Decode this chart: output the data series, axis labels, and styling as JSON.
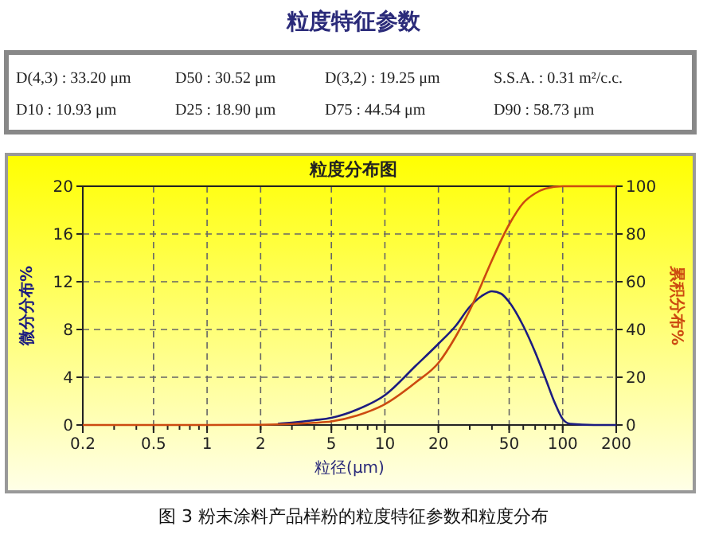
{
  "chart_data": {
    "type": "line",
    "title": "粒度分布图",
    "xlabel": "粒径(μm)",
    "ylabel": "微分分布%",
    "y2label": "累积分布%",
    "annotations": [
      "粒度特征参数",
      "D(4,3) : 33.20 μm",
      "D50 : 30.52 μm",
      "D(3,2) : 19.25 μm",
      "S.S.A. : 0.31 m²/c.c.",
      "D10 : 10.93 μm",
      "D25 : 18.90 μm",
      "D75 : 44.54 μm",
      "D90 : 58.73 μm",
      "图 3  粉末涂料产品样粉的粒度特征参数和粒度分布"
    ],
    "series": [
      {
        "color": "#1c1c80",
        "x": [
          2.5,
          3,
          4,
          5,
          7,
          10,
          15,
          20,
          25,
          30,
          35,
          40,
          45,
          50,
          60,
          70,
          80,
          90,
          100,
          110,
          150,
          200
        ],
        "values": [
          0.1,
          0.2,
          0.4,
          0.6,
          1.3,
          2.5,
          5.0,
          6.8,
          8.3,
          9.9,
          10.8,
          11.2,
          11.0,
          10.3,
          8.3,
          6.1,
          3.9,
          1.9,
          0.5,
          0.1,
          0,
          0
        ]
      },
      {
        "color": "#cc4a10",
        "axis": "y2",
        "x": [
          0.2,
          1,
          2,
          3,
          4,
          5,
          7,
          10,
          15,
          20,
          25,
          30,
          35,
          40,
          50,
          60,
          70,
          80,
          100,
          150,
          200
        ],
        "values": [
          0,
          0,
          0.1,
          0.4,
          0.9,
          1.5,
          4,
          8.7,
          18,
          26,
          37,
          48,
          59,
          69,
          84,
          93,
          97,
          99,
          100,
          100,
          100
        ]
      }
    ],
    "log": "x",
    "xlim": [
      0.2,
      200
    ],
    "xticks": [
      0.2,
      0.5,
      1,
      2,
      5,
      10,
      20,
      50,
      100,
      200
    ],
    "ylim": [
      0,
      20
    ],
    "yticks": [
      0,
      4,
      8,
      12,
      16,
      20
    ],
    "y2lim": [
      0,
      100
    ],
    "y2ticks": [
      0,
      20,
      40,
      60,
      80,
      100
    ],
    "grid": true,
    "line_style": "solid",
    "marker": "none"
  }
}
